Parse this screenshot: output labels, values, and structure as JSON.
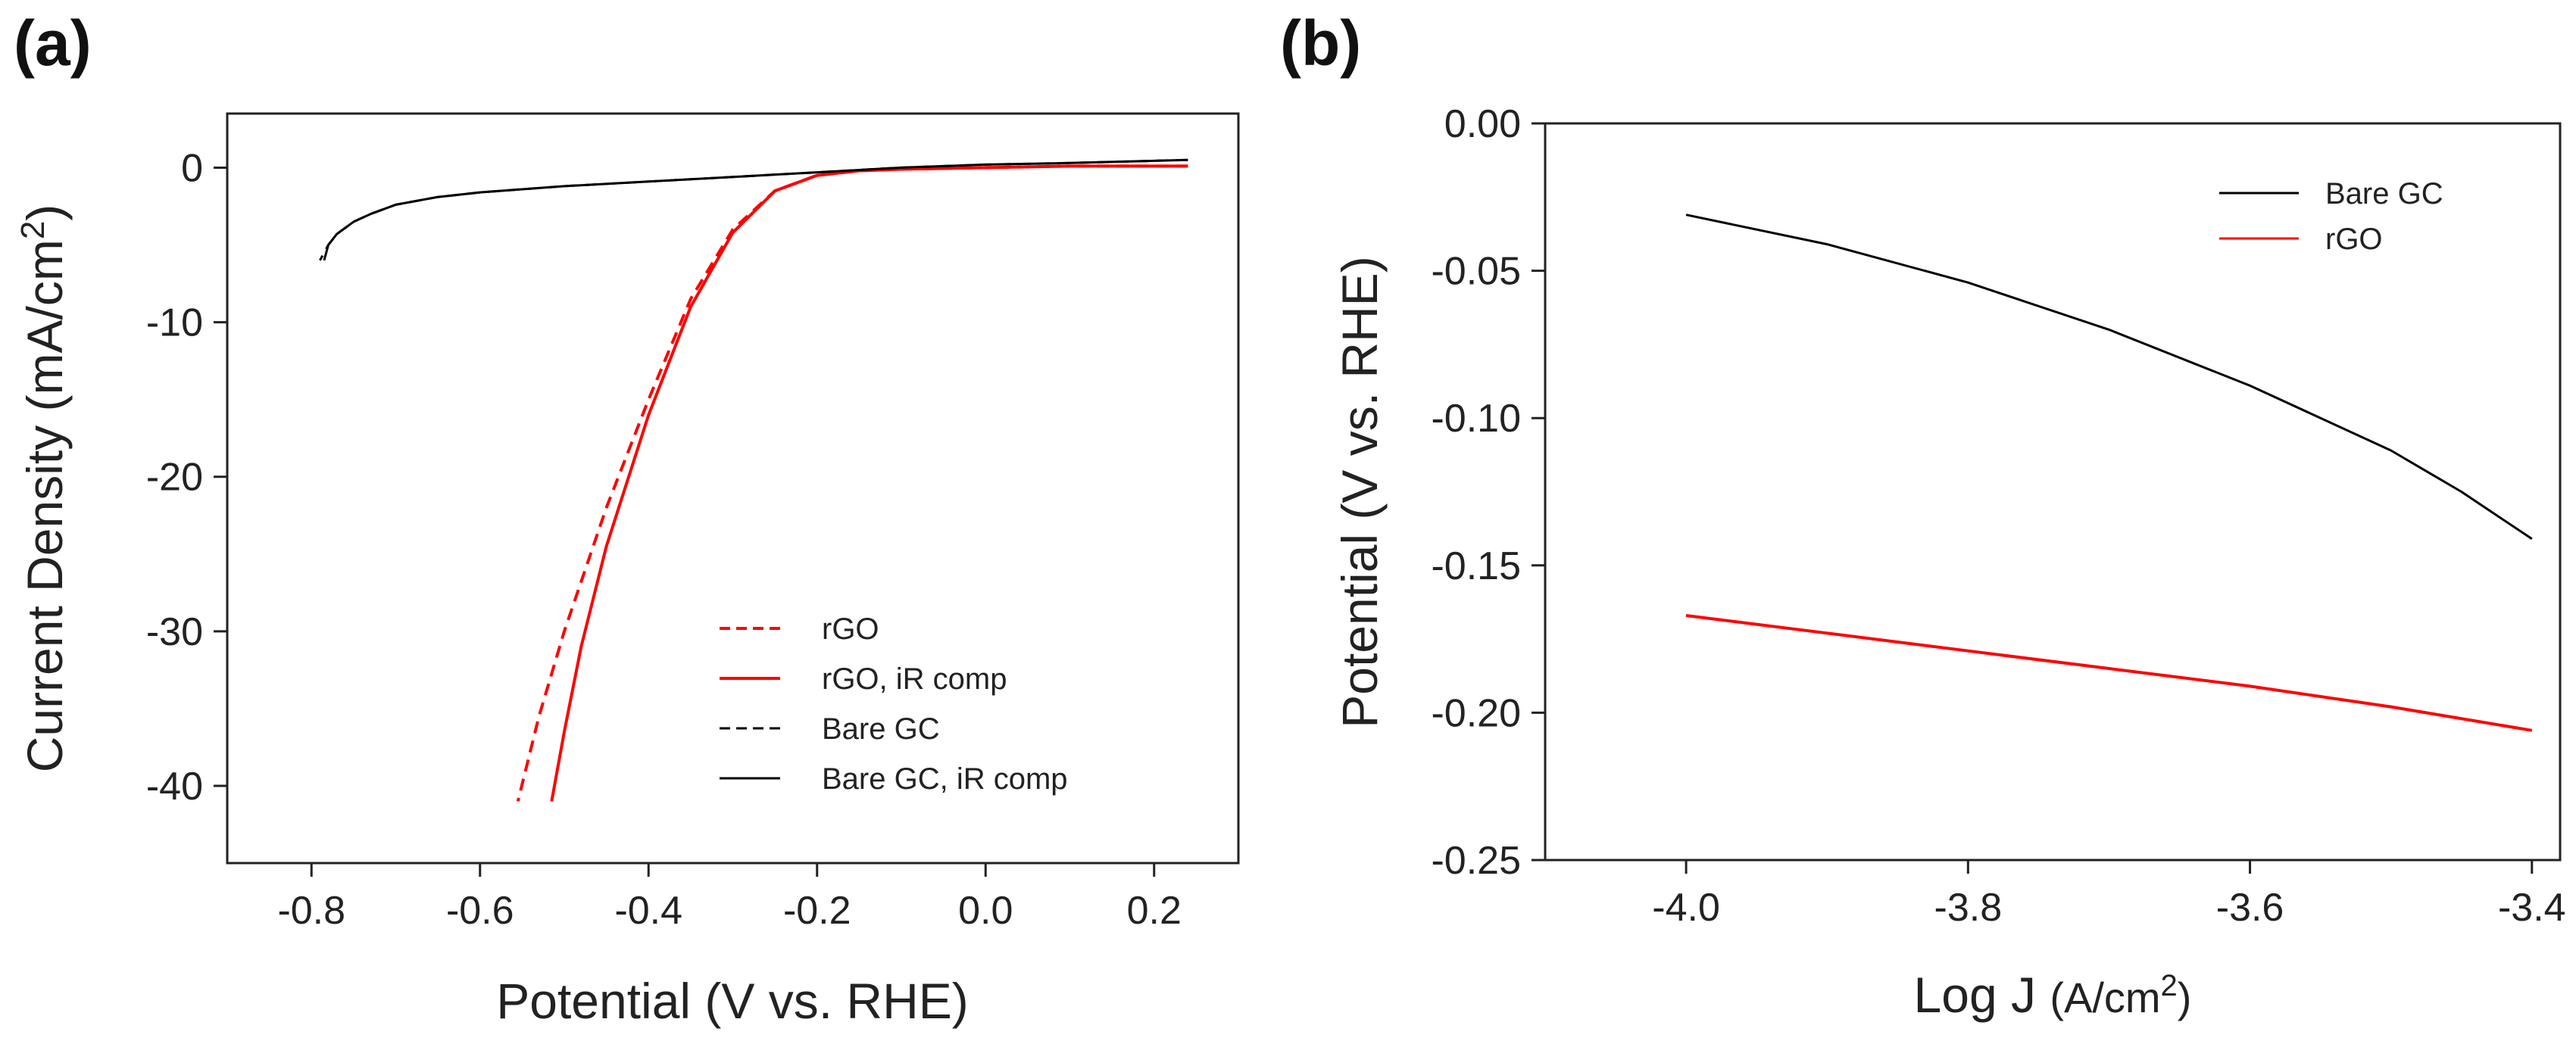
{
  "figure": {
    "panel_a_label": "(a)",
    "panel_b_label": "(b)"
  },
  "chart_data": [
    {
      "id": "a",
      "type": "line",
      "title": "",
      "xlabel": "Potential (V vs. RHE)",
      "ylabel_main": "Current Density (mA/cm",
      "ylabel_sup": "2",
      "ylabel_close": ")",
      "xlim": [
        -0.9,
        0.3
      ],
      "ylim": [
        -45,
        3.5
      ],
      "xticks": [
        -0.8,
        -0.6,
        -0.4,
        -0.2,
        0.0,
        0.2
      ],
      "xtick_labels": [
        "-0.8",
        "-0.6",
        "-0.4",
        "-0.2",
        "0.0",
        "0.2"
      ],
      "yticks": [
        0,
        -10,
        -20,
        -30,
        -40
      ],
      "ytick_labels": [
        "0",
        "-10",
        "-20",
        "-30",
        "-40"
      ],
      "legend_position": "lower-right",
      "series": [
        {
          "name": "rGO",
          "color": "#ff0000",
          "dash": "dashed",
          "x": [
            0.24,
            0.1,
            0.0,
            -0.1,
            -0.15,
            -0.2,
            -0.25,
            -0.3,
            -0.35,
            -0.4,
            -0.45,
            -0.5,
            -0.53,
            -0.555
          ],
          "y": [
            0.1,
            0.1,
            0.0,
            -0.1,
            -0.2,
            -0.5,
            -1.5,
            -4.0,
            -8.5,
            -15.0,
            -22.0,
            -30.0,
            -35.5,
            -41.0
          ]
        },
        {
          "name": "rGO, iR comp",
          "color": "#ff0000",
          "dash": "solid",
          "x": [
            0.24,
            0.1,
            0.0,
            -0.1,
            -0.15,
            -0.2,
            -0.25,
            -0.3,
            -0.35,
            -0.4,
            -0.45,
            -0.48,
            -0.5,
            -0.515
          ],
          "y": [
            0.1,
            0.1,
            0.0,
            -0.1,
            -0.2,
            -0.5,
            -1.5,
            -4.2,
            -9.0,
            -16.0,
            -24.5,
            -31.0,
            -36.5,
            -41.0
          ]
        },
        {
          "name": "Bare GC",
          "color": "#000000",
          "dash": "dashed",
          "x": [
            0.24,
            0.1,
            0.0,
            -0.1,
            -0.2,
            -0.3,
            -0.4,
            -0.5,
            -0.6,
            -0.65,
            -0.7,
            -0.73,
            -0.75,
            -0.77,
            -0.78,
            -0.79
          ],
          "y": [
            0.5,
            0.3,
            0.2,
            0.0,
            -0.3,
            -0.6,
            -0.9,
            -1.2,
            -1.6,
            -1.9,
            -2.4,
            -3.0,
            -3.5,
            -4.3,
            -5.0,
            -6.0
          ]
        },
        {
          "name": "Bare GC, iR comp",
          "color": "#000000",
          "dash": "solid",
          "x": [
            0.24,
            0.1,
            0.0,
            -0.1,
            -0.2,
            -0.3,
            -0.4,
            -0.5,
            -0.6,
            -0.65,
            -0.7,
            -0.73,
            -0.75,
            -0.77,
            -0.78,
            -0.785
          ],
          "y": [
            0.5,
            0.3,
            0.2,
            0.0,
            -0.3,
            -0.6,
            -0.9,
            -1.2,
            -1.6,
            -1.9,
            -2.4,
            -3.0,
            -3.5,
            -4.3,
            -5.0,
            -6.0
          ]
        }
      ]
    },
    {
      "id": "b",
      "type": "line",
      "title": "",
      "xlabel_main": "Log J ",
      "xlabel_unit": "(A/cm",
      "xlabel_sup": "2",
      "xlabel_close": ")",
      "ylabel": "Potential (V vs. RHE)",
      "xlim": [
        -4.1,
        -3.38
      ],
      "ylim": [
        -0.25,
        0.0
      ],
      "xticks": [
        -4.0,
        -3.8,
        -3.6,
        -3.4
      ],
      "xtick_labels": [
        "-4.0",
        "-3.8",
        "-3.6",
        "-3.4"
      ],
      "yticks": [
        0.0,
        -0.05,
        -0.1,
        -0.15,
        -0.2,
        -0.25
      ],
      "ytick_labels": [
        "0.00",
        "-0.05",
        "-0.10",
        "-0.15",
        "-0.20",
        "-0.25"
      ],
      "legend_position": "top-right",
      "series": [
        {
          "name": "Bare GC",
          "color": "#000000",
          "dash": "solid",
          "x": [
            -4.0,
            -3.9,
            -3.8,
            -3.7,
            -3.6,
            -3.5,
            -3.45,
            -3.4
          ],
          "y": [
            -0.031,
            -0.041,
            -0.054,
            -0.07,
            -0.089,
            -0.111,
            -0.125,
            -0.141
          ]
        },
        {
          "name": "rGO",
          "color": "#ff0000",
          "dash": "solid",
          "x": [
            -4.0,
            -3.9,
            -3.8,
            -3.7,
            -3.6,
            -3.5,
            -3.4
          ],
          "y": [
            -0.167,
            -0.173,
            -0.179,
            -0.185,
            -0.191,
            -0.198,
            -0.206
          ]
        }
      ]
    }
  ]
}
